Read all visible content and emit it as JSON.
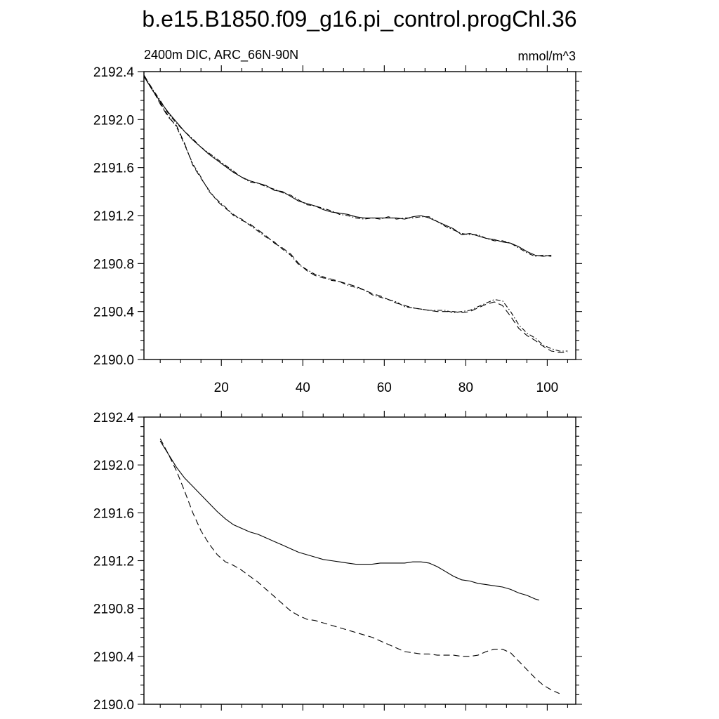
{
  "title": "b.e15.B1850.f09_g16.pi_control.progChl.36",
  "chart_data": [
    {
      "type": "line",
      "left_label": "2400m DIC, ARC_66N-90N",
      "right_label": "mmol/m^3",
      "xlim": [
        1,
        107
      ],
      "ylim": [
        2190.0,
        2192.4
      ],
      "x_ticks": [
        20,
        40,
        60,
        80,
        100
      ],
      "x_tick_labels": [
        "20",
        "40",
        "60",
        "80",
        "100"
      ],
      "y_ticks": [
        2190.0,
        2190.4,
        2190.8,
        2191.2,
        2191.6,
        2192.0,
        2192.4
      ],
      "y_tick_labels": [
        "2190.0",
        "2190.4",
        "2190.8",
        "2191.2",
        "2191.6",
        "2192.0",
        "2192.4"
      ],
      "grid": false,
      "series": [
        {
          "style": "solid",
          "x": [
            1,
            3,
            5,
            7,
            9,
            11,
            13,
            15,
            17,
            19,
            21,
            23,
            25,
            27,
            29,
            31,
            33,
            35,
            37,
            39,
            41,
            43,
            45,
            47,
            49,
            51,
            53,
            55,
            57,
            59,
            61,
            63,
            65,
            67,
            69,
            71,
            73,
            75,
            77,
            79,
            81,
            83,
            85,
            87,
            89,
            91,
            93,
            95,
            97,
            99,
            101
          ],
          "y": [
            2192.36,
            2192.25,
            2192.15,
            2192.06,
            2191.98,
            2191.9,
            2191.83,
            2191.77,
            2191.71,
            2191.66,
            2191.61,
            2191.56,
            2191.52,
            2191.49,
            2191.47,
            2191.45,
            2191.41,
            2191.4,
            2191.36,
            2191.32,
            2191.3,
            2191.28,
            2191.25,
            2191.23,
            2191.22,
            2191.21,
            2191.19,
            2191.18,
            2191.18,
            2191.18,
            2191.18,
            2191.18,
            2191.17,
            2191.19,
            2191.2,
            2191.18,
            2191.15,
            2191.12,
            2191.09,
            2191.04,
            2191.05,
            2191.03,
            2191.01,
            2191.0,
            2190.98,
            2190.97,
            2190.94,
            2190.9,
            2190.87,
            2190.86,
            2190.87
          ]
        },
        {
          "style": "dash-dot",
          "x": [
            1,
            3,
            5,
            7,
            9,
            11,
            13,
            15,
            17,
            19,
            21,
            23,
            25,
            27,
            29,
            31,
            33,
            35,
            37,
            39,
            41,
            43,
            45,
            47,
            49,
            51,
            53,
            55,
            57,
            59,
            61,
            63,
            65,
            67,
            69,
            71,
            73,
            75,
            77,
            79,
            81,
            83,
            85,
            87,
            89,
            91,
            93,
            95,
            97,
            99,
            101
          ],
          "y": [
            2192.37,
            2192.26,
            2192.16,
            2192.05,
            2191.97,
            2191.9,
            2191.84,
            2191.77,
            2191.72,
            2191.67,
            2191.62,
            2191.57,
            2191.52,
            2191.48,
            2191.47,
            2191.44,
            2191.42,
            2191.39,
            2191.37,
            2191.33,
            2191.29,
            2191.28,
            2191.26,
            2191.24,
            2191.21,
            2191.2,
            2191.18,
            2191.17,
            2191.18,
            2191.17,
            2191.19,
            2191.17,
            2191.18,
            2191.18,
            2191.19,
            2191.19,
            2191.15,
            2191.11,
            2191.08,
            2191.05,
            2191.04,
            2191.04,
            2191.01,
            2190.99,
            2190.99,
            2190.97,
            2190.93,
            2190.89,
            2190.86,
            2190.87,
            2190.86
          ]
        },
        {
          "style": "dashed",
          "x": [
            1,
            3,
            5,
            7,
            9,
            11,
            13,
            15,
            17,
            19,
            21,
            23,
            25,
            27,
            29,
            31,
            33,
            35,
            37,
            39,
            41,
            43,
            45,
            47,
            49,
            51,
            53,
            55,
            57,
            59,
            61,
            63,
            65,
            67,
            69,
            71,
            73,
            75,
            77,
            79,
            81,
            83,
            85,
            87,
            89,
            91,
            93,
            95,
            97,
            99,
            101,
            103,
            105
          ],
          "y": [
            2192.37,
            2192.26,
            2192.13,
            2192.02,
            2191.95,
            2191.8,
            2191.62,
            2191.51,
            2191.41,
            2191.32,
            2191.26,
            2191.21,
            2191.16,
            2191.13,
            2191.08,
            2191.03,
            2190.97,
            2190.93,
            2190.88,
            2190.8,
            2190.74,
            2190.7,
            2190.68,
            2190.67,
            2190.65,
            2190.63,
            2190.61,
            2190.58,
            2190.55,
            2190.53,
            2190.5,
            2190.47,
            2190.45,
            2190.43,
            2190.42,
            2190.41,
            2190.4,
            2190.4,
            2190.4,
            2190.39,
            2190.4,
            2190.43,
            2190.46,
            2190.48,
            2190.45,
            2190.36,
            2190.26,
            2190.2,
            2190.16,
            2190.11,
            2190.07,
            2190.06,
            2190.06
          ]
        },
        {
          "style": "dash-dot",
          "x": [
            1,
            3,
            5,
            7,
            9,
            11,
            13,
            15,
            17,
            19,
            21,
            23,
            25,
            27,
            29,
            31,
            33,
            35,
            37,
            39,
            41,
            43,
            45,
            47,
            49,
            51,
            53,
            55,
            57,
            59,
            61,
            63,
            65,
            67,
            69,
            71,
            73,
            75,
            77,
            79,
            81,
            83,
            85,
            87,
            89,
            91,
            93,
            95,
            97,
            99,
            101,
            103,
            105
          ],
          "y": [
            2192.36,
            2192.25,
            2192.14,
            2192.03,
            2191.94,
            2191.79,
            2191.63,
            2191.52,
            2191.4,
            2191.33,
            2191.27,
            2191.2,
            2191.17,
            2191.12,
            2191.07,
            2191.02,
            2190.98,
            2190.92,
            2190.87,
            2190.79,
            2190.75,
            2190.71,
            2190.69,
            2190.66,
            2190.65,
            2190.62,
            2190.6,
            2190.58,
            2190.54,
            2190.52,
            2190.5,
            2190.48,
            2190.44,
            2190.43,
            2190.42,
            2190.41,
            2190.41,
            2190.41,
            2190.39,
            2190.4,
            2190.41,
            2190.44,
            2190.47,
            2190.5,
            2190.49,
            2190.4,
            2190.29,
            2190.22,
            2190.18,
            2190.12,
            2190.09,
            2190.07,
            2190.07
          ]
        }
      ]
    },
    {
      "type": "line",
      "xlim": [
        1,
        107
      ],
      "ylim": [
        2190.0,
        2192.4
      ],
      "x_ticks": [
        20,
        40,
        60,
        80,
        100
      ],
      "y_ticks": [
        2190.0,
        2190.4,
        2190.8,
        2191.2,
        2191.6,
        2192.0,
        2192.4
      ],
      "y_tick_labels": [
        "2190.0",
        "2190.4",
        "2190.8",
        "2191.2",
        "2191.6",
        "2192.0",
        "2192.4"
      ],
      "grid": false,
      "series": [
        {
          "style": "solid",
          "x": [
            5,
            7,
            9,
            11,
            13,
            15,
            17,
            19,
            21,
            23,
            25,
            27,
            29,
            31,
            33,
            35,
            37,
            39,
            41,
            43,
            45,
            47,
            49,
            51,
            53,
            55,
            57,
            59,
            61,
            63,
            65,
            67,
            69,
            71,
            73,
            75,
            77,
            79,
            81,
            83,
            85,
            87,
            89,
            91,
            93,
            95,
            97,
            98
          ],
          "y": [
            2192.2,
            2192.09,
            2191.98,
            2191.89,
            2191.82,
            2191.75,
            2191.68,
            2191.61,
            2191.55,
            2191.5,
            2191.47,
            2191.44,
            2191.42,
            2191.39,
            2191.36,
            2191.33,
            2191.3,
            2191.27,
            2191.25,
            2191.23,
            2191.21,
            2191.2,
            2191.19,
            2191.18,
            2191.17,
            2191.17,
            2191.17,
            2191.18,
            2191.18,
            2191.18,
            2191.18,
            2191.19,
            2191.19,
            2191.18,
            2191.15,
            2191.11,
            2191.07,
            2191.04,
            2191.03,
            2191.01,
            2191.0,
            2190.99,
            2190.98,
            2190.96,
            2190.93,
            2190.91,
            2190.88,
            2190.87
          ]
        },
        {
          "style": "dashed",
          "x": [
            5,
            7,
            9,
            11,
            13,
            15,
            17,
            19,
            21,
            23,
            25,
            27,
            29,
            31,
            33,
            35,
            37,
            39,
            41,
            43,
            45,
            47,
            49,
            51,
            53,
            55,
            57,
            59,
            61,
            63,
            65,
            67,
            69,
            71,
            73,
            75,
            77,
            79,
            81,
            83,
            85,
            87,
            89,
            91,
            93,
            95,
            97,
            99,
            101,
            103
          ],
          "y": [
            2192.22,
            2192.09,
            2191.95,
            2191.78,
            2191.6,
            2191.45,
            2191.34,
            2191.25,
            2191.19,
            2191.16,
            2191.12,
            2191.07,
            2191.02,
            2190.96,
            2190.9,
            2190.84,
            2190.78,
            2190.74,
            2190.71,
            2190.7,
            2190.68,
            2190.66,
            2190.64,
            2190.62,
            2190.6,
            2190.58,
            2190.56,
            2190.53,
            2190.5,
            2190.47,
            2190.44,
            2190.43,
            2190.42,
            2190.42,
            2190.41,
            2190.41,
            2190.41,
            2190.4,
            2190.4,
            2190.41,
            2190.44,
            2190.46,
            2190.46,
            2190.43,
            2190.36,
            2190.29,
            2190.22,
            2190.16,
            2190.12,
            2190.09
          ]
        }
      ]
    }
  ]
}
